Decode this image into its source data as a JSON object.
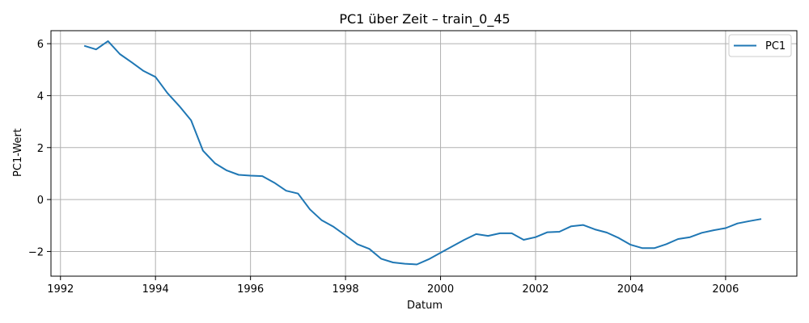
{
  "chart_data": {
    "type": "line",
    "title": "PC1 über Zeit – train_0_45",
    "xlabel": "Datum",
    "ylabel": "PC1-Wert",
    "xlim": [
      1991.8,
      2007.5
    ],
    "ylim": [
      -2.95,
      6.5
    ],
    "xticks": [
      1992,
      1994,
      1996,
      1998,
      2000,
      2002,
      2004,
      2006
    ],
    "yticks": [
      -2,
      0,
      2,
      4,
      6
    ],
    "grid": true,
    "legend_position": "top-right",
    "series": [
      {
        "name": "PC1",
        "color": "#1f77b4",
        "x": [
          1992.5,
          1992.75,
          1993.0,
          1993.25,
          1993.5,
          1993.75,
          1994.0,
          1994.25,
          1994.5,
          1994.75,
          1995.0,
          1995.25,
          1995.5,
          1995.75,
          1996.0,
          1996.25,
          1996.5,
          1996.75,
          1997.0,
          1997.25,
          1997.5,
          1997.75,
          1998.0,
          1998.25,
          1998.5,
          1998.75,
          1999.0,
          1999.25,
          1999.5,
          1999.75,
          2000.0,
          2000.25,
          2000.5,
          2000.75,
          2001.0,
          2001.25,
          2001.5,
          2001.75,
          2002.0,
          2002.25,
          2002.5,
          2002.75,
          2003.0,
          2003.25,
          2003.5,
          2003.75,
          2004.0,
          2004.25,
          2004.5,
          2004.75,
          2005.0,
          2005.25,
          2005.5,
          2005.75,
          2006.0,
          2006.25,
          2006.5,
          2006.75
        ],
        "y": [
          5.92,
          5.78,
          6.1,
          5.6,
          5.28,
          4.95,
          4.72,
          4.1,
          3.6,
          3.05,
          1.88,
          1.4,
          1.12,
          0.95,
          0.92,
          0.9,
          0.65,
          0.34,
          0.23,
          -0.38,
          -0.8,
          -1.05,
          -1.38,
          -1.72,
          -1.9,
          -2.28,
          -2.42,
          -2.47,
          -2.5,
          -2.3,
          -2.05,
          -1.8,
          -1.55,
          -1.33,
          -1.4,
          -1.3,
          -1.3,
          -1.55,
          -1.45,
          -1.26,
          -1.24,
          -1.03,
          -0.98,
          -1.15,
          -1.27,
          -1.48,
          -1.74,
          -1.87,
          -1.87,
          -1.72,
          -1.52,
          -1.45,
          -1.28,
          -1.18,
          -1.1,
          -0.92,
          -0.83,
          -0.75
        ]
      }
    ]
  }
}
